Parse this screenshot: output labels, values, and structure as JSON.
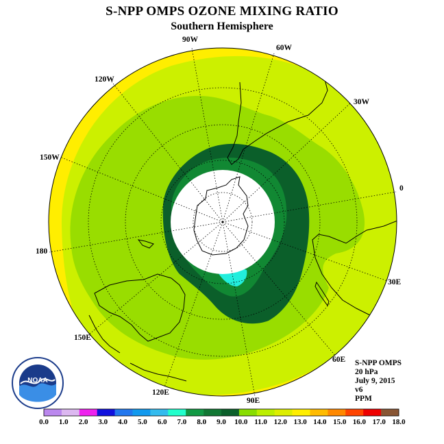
{
  "title": "S-NPP OMPS OZONE MIXING RATIO",
  "subtitle": "Southern Hemisphere",
  "longitude_labels": [
    "90W",
    "60W",
    "30W",
    "0",
    "30E",
    "60E",
    "90E",
    "120E",
    "150E",
    "180",
    "150W",
    "120W"
  ],
  "info": {
    "satellite": "S-NPP OMPS",
    "level": "20 hPa",
    "date": "July 9, 2015",
    "version": "v6",
    "units": "PPM"
  },
  "colorbar": {
    "ticks": [
      "0.0",
      "1.0",
      "2.0",
      "3.0",
      "4.0",
      "5.0",
      "6.0",
      "7.0",
      "8.0",
      "9.0",
      "10.0",
      "11.0",
      "12.0",
      "13.0",
      "14.0",
      "15.0",
      "16.0",
      "17.0",
      "18.0"
    ],
    "colors": [
      "#bb88ee",
      "#dcb8f0",
      "#ee22ee",
      "#1010dd",
      "#2277ee",
      "#1199ee",
      "#33bbee",
      "#22ffcc",
      "#119944",
      "#117733",
      "#0b5f2a",
      "#88dd00",
      "#bbee00",
      "#ddee00",
      "#ffee00",
      "#ffbb00",
      "#ff8800",
      "#ff4400",
      "#ee0000",
      "#885533"
    ]
  },
  "logo": {
    "text": "NOAA"
  },
  "map_colors": {
    "ocean_outer": "#ffee00",
    "lvl_12": "#ccf000",
    "lvl_11": "#99dd00",
    "lvl_10": "#0b5f2a",
    "lvl_9": "#118833",
    "lvl_8": "#22eedd",
    "polar_night": "#ffffff"
  }
}
